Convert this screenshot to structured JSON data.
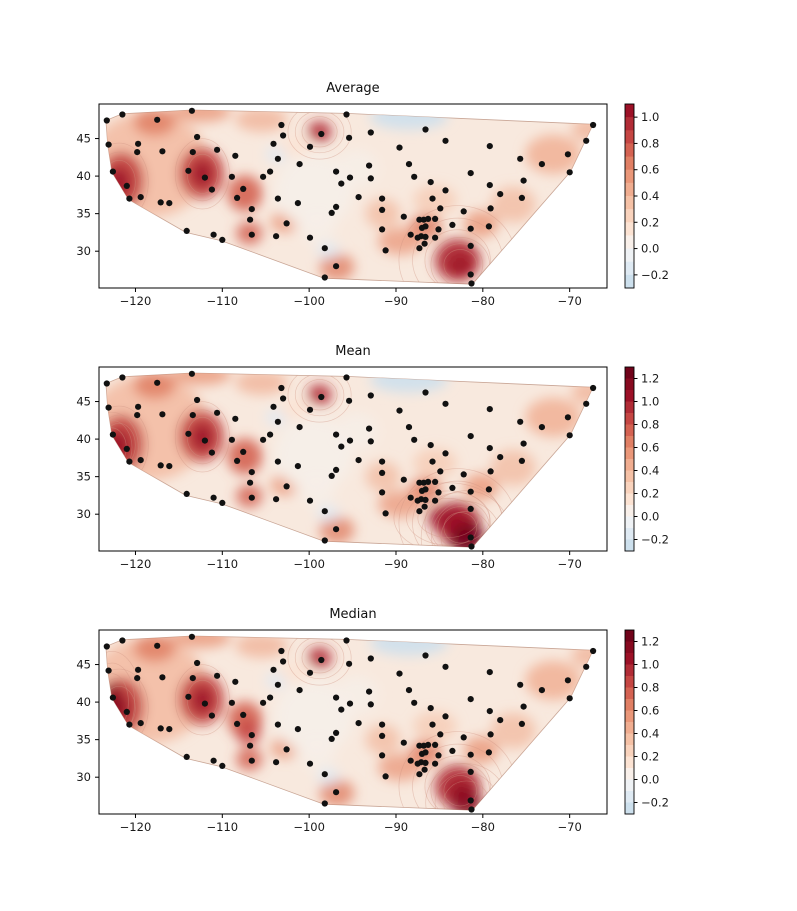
{
  "figure": {
    "background": "#ffffff",
    "colors": {
      "dot": "#111111",
      "frame": "#000000",
      "tick_text": "#1a1a1a",
      "hull_base": "#f8e9de",
      "hull_edge": "#c9a696",
      "ring_stroke": "#cf9384"
    }
  },
  "chart_data": {
    "type": "contour_scatter",
    "description": "Three filled tricontour maps of station values over the continental US with identical station scatter points",
    "xlabel": "",
    "ylabel": "",
    "xlim": [
      -124.2,
      -65.7
    ],
    "ylim": [
      25.1,
      49.6
    ],
    "x_ticks": {
      "values": [
        -120,
        -110,
        -100,
        -90,
        -80,
        -70
      ],
      "labels": [
        "−120",
        "−110",
        "−100",
        "−90",
        "−80",
        "−70"
      ]
    },
    "y_ticks": {
      "values": [
        30,
        35,
        40,
        45
      ],
      "labels": [
        "30",
        "35",
        "40",
        "45"
      ]
    },
    "grid": false,
    "subplots": [
      {
        "title": "Average",
        "colorbar": {
          "vmin": -0.3,
          "vmax": 1.1,
          "ticks": [
            1.0,
            0.8,
            0.6,
            0.4,
            0.2,
            0.0,
            -0.2
          ],
          "tick_labels": [
            "1.0",
            "0.8",
            "0.6",
            "0.4",
            "0.2",
            "0.0",
            "−0.2"
          ],
          "palette": [
            "#cde0ed",
            "#dfeaf3",
            "#eff2f5",
            "#f9f0ea",
            "#fce3d3",
            "#f9d3bd",
            "#f5c1a6",
            "#f0ad90",
            "#ea9779",
            "#e07f64",
            "#d46252",
            "#c54643",
            "#b12c36",
            "#9c1127"
          ]
        },
        "extra_blobs": []
      },
      {
        "title": "Mean",
        "colorbar": {
          "vmin": -0.3,
          "vmax": 1.3,
          "ticks": [
            1.2,
            1.0,
            0.8,
            0.6,
            0.4,
            0.2,
            0.0,
            -0.2
          ],
          "tick_labels": [
            "1.2",
            "1.0",
            "0.8",
            "0.6",
            "0.4",
            "0.2",
            "0.0",
            "−0.2"
          ],
          "palette": [
            "#cde0ed",
            "#dfeaf3",
            "#eff2f5",
            "#f9f0ea",
            "#fce3d3",
            "#f9d3bd",
            "#f5c1a6",
            "#f0ad90",
            "#ea9779",
            "#e07f64",
            "#d46252",
            "#c54643",
            "#b12c36",
            "#9c1127",
            "#870a20",
            "#70031a"
          ]
        },
        "extra_blobs": [
          [
            -81.9,
            26.9,
            2.0,
            2.4,
            "#70031a",
            0.9
          ],
          [
            -84.0,
            29.5,
            2.4,
            1.8,
            "#9c1127",
            0.8
          ],
          [
            -122.8,
            38.9,
            1.2,
            1.8,
            "#9c1127",
            0.85
          ]
        ]
      },
      {
        "title": "Median",
        "colorbar": {
          "vmin": -0.3,
          "vmax": 1.3,
          "ticks": [
            1.2,
            1.0,
            0.8,
            0.6,
            0.4,
            0.2,
            0.0,
            -0.2
          ],
          "tick_labels": [
            "1.2",
            "1.0",
            "0.8",
            "0.6",
            "0.4",
            "0.2",
            "0.0",
            "−0.2"
          ],
          "palette": [
            "#cde0ed",
            "#dfeaf3",
            "#eff2f5",
            "#f9f0ea",
            "#fce3d3",
            "#f9d3bd",
            "#f5c1a6",
            "#f0ad90",
            "#ea9779",
            "#e07f64",
            "#d46252",
            "#c54643",
            "#b12c36",
            "#9c1127",
            "#870a20",
            "#70031a"
          ]
        },
        "extra_blobs": [
          [
            -122.7,
            40.0,
            1.3,
            2.6,
            "#870a20",
            0.9
          ],
          [
            -81.9,
            26.6,
            1.8,
            2.0,
            "#870a20",
            0.85
          ],
          [
            -107.0,
            36.0,
            1.4,
            1.8,
            "#c54643",
            0.8
          ]
        ]
      }
    ],
    "hull": [
      [
        -123.4,
        47.4
      ],
      [
        -121.5,
        48.3
      ],
      [
        -113.5,
        48.8
      ],
      [
        -95.7,
        48.35
      ],
      [
        -67.3,
        46.9
      ],
      [
        -69.9,
        40.6
      ],
      [
        -81.2,
        25.6
      ],
      [
        -98.3,
        26.4
      ],
      [
        -110.1,
        31.4
      ],
      [
        -114.2,
        32.5
      ],
      [
        -120.8,
        36.9
      ],
      [
        -122.7,
        40.5
      ],
      [
        -123.2,
        44.2
      ]
    ],
    "base_blobs": [
      [
        -118.5,
        41.5,
        7.0,
        7.0,
        "#f3b89d",
        0.8
      ],
      [
        -121.6,
        39.4,
        2.6,
        3.8,
        "#c54643",
        0.95
      ],
      [
        -121.9,
        39.2,
        1.3,
        2.0,
        "#9c1127",
        0.9
      ],
      [
        -112.4,
        40.4,
        2.6,
        3.4,
        "#c54643",
        0.95
      ],
      [
        -112.3,
        40.3,
        1.2,
        1.8,
        "#9c1127",
        0.9
      ],
      [
        -107.4,
        37.7,
        2.0,
        2.4,
        "#d46252",
        0.9
      ],
      [
        -117.8,
        47.2,
        2.4,
        1.8,
        "#e07f64",
        0.85
      ],
      [
        -112.5,
        48.6,
        3.5,
        1.4,
        "#ea9779",
        0.8
      ],
      [
        -105.5,
        47.5,
        3.0,
        1.6,
        "#f0ad90",
        0.7
      ],
      [
        -98.8,
        45.9,
        1.4,
        1.4,
        "#b12c36",
        0.9
      ],
      [
        -106.9,
        32.4,
        1.5,
        1.5,
        "#d46252",
        0.85
      ],
      [
        -102.8,
        33.9,
        1.6,
        1.4,
        "#ea9779",
        0.8
      ],
      [
        -82.9,
        28.8,
        2.6,
        2.8,
        "#b12c36",
        0.95
      ],
      [
        -82.6,
        28.2,
        1.3,
        1.4,
        "#9c1127",
        0.9
      ],
      [
        -86.6,
        33.2,
        1.9,
        1.7,
        "#e07f64",
        0.85
      ],
      [
        -89.5,
        31.3,
        2.6,
        1.8,
        "#ea9779",
        0.75
      ],
      [
        -96.8,
        27.9,
        2.0,
        1.8,
        "#e07f64",
        0.8
      ],
      [
        -80.2,
        33.6,
        2.0,
        1.8,
        "#ea9779",
        0.8
      ],
      [
        -71.9,
        42.9,
        3.2,
        2.6,
        "#f0ad90",
        0.8
      ],
      [
        -76.5,
        36.2,
        2.6,
        2.4,
        "#f0ad90",
        0.6
      ],
      [
        -67.8,
        46.2,
        2.0,
        1.6,
        "#f0ad90",
        0.7
      ],
      [
        -91.5,
        35.0,
        2.0,
        2.0,
        "#f0ad90",
        0.6
      ],
      [
        -85.5,
        36.8,
        2.5,
        2.0,
        "#f5c1a6",
        0.6
      ],
      [
        -88.5,
        47.9,
        4.5,
        1.7,
        "#cde0ed",
        0.9
      ],
      [
        -103.7,
        42.9,
        1.3,
        1.1,
        "#dfeaf3",
        0.85
      ],
      [
        -97.8,
        30.1,
        1.3,
        1.1,
        "#dfeaf3",
        0.85
      ],
      [
        -99.5,
        38.0,
        4.5,
        5.0,
        "#f6efe9",
        0.9
      ],
      [
        -94.5,
        41.0,
        2.5,
        2.5,
        "#f6efe9",
        0.8
      ],
      [
        -99.0,
        33.0,
        2.0,
        2.0,
        "#f6efe9",
        0.8
      ],
      [
        -101.5,
        44.0,
        2.0,
        1.5,
        "#fce3d3",
        0.7
      ]
    ],
    "stations": [
      [
        -123.3,
        47.4
      ],
      [
        -121.5,
        48.2
      ],
      [
        -117.5,
        47.5
      ],
      [
        -113.5,
        48.7
      ],
      [
        -123.1,
        44.2
      ],
      [
        -119.7,
        44.3
      ],
      [
        -119.8,
        43.2
      ],
      [
        -116.9,
        43.3
      ],
      [
        -112.9,
        45.2
      ],
      [
        -113.4,
        43.2
      ],
      [
        -110.6,
        43.5
      ],
      [
        -108.5,
        42.7
      ],
      [
        -122.6,
        40.6
      ],
      [
        -121.0,
        38.7
      ],
      [
        -113.9,
        40.7
      ],
      [
        -112.0,
        39.8
      ],
      [
        -111.2,
        38.2
      ],
      [
        -108.9,
        39.9
      ],
      [
        -107.6,
        38.3
      ],
      [
        -105.3,
        39.9
      ],
      [
        -104.5,
        40.6
      ],
      [
        -103.6,
        42.3
      ],
      [
        -104.1,
        44.3
      ],
      [
        -103.2,
        46.8
      ],
      [
        -103.0,
        45.4
      ],
      [
        -101.1,
        41.6
      ],
      [
        -98.6,
        45.6
      ],
      [
        -99.9,
        43.9
      ],
      [
        -95.7,
        48.2
      ],
      [
        -95.4,
        45.1
      ],
      [
        -96.9,
        40.6
      ],
      [
        -95.3,
        39.8
      ],
      [
        -96.3,
        39.0
      ],
      [
        -96.9,
        35.9
      ],
      [
        -97.4,
        35.1
      ],
      [
        -120.7,
        37.0
      ],
      [
        -119.4,
        37.2
      ],
      [
        -117.1,
        36.5
      ],
      [
        -116.1,
        36.4
      ],
      [
        -114.1,
        32.7
      ],
      [
        -111.0,
        32.2
      ],
      [
        -110.0,
        31.5
      ],
      [
        -108.3,
        37.1
      ],
      [
        -106.6,
        35.6
      ],
      [
        -106.8,
        34.2
      ],
      [
        -106.6,
        32.2
      ],
      [
        -103.6,
        37.0
      ],
      [
        -102.6,
        33.7
      ],
      [
        -103.8,
        32.0
      ],
      [
        -101.3,
        36.4
      ],
      [
        -99.9,
        31.8
      ],
      [
        -98.2,
        30.4
      ],
      [
        -96.9,
        28.0
      ],
      [
        -98.2,
        26.5
      ],
      [
        -91.2,
        30.1
      ],
      [
        -92.9,
        45.8
      ],
      [
        -89.6,
        43.8
      ],
      [
        -86.6,
        46.2
      ],
      [
        -84.3,
        44.7
      ],
      [
        -93.1,
        41.4
      ],
      [
        -88.5,
        41.6
      ],
      [
        -92.9,
        39.7
      ],
      [
        -87.9,
        39.9
      ],
      [
        -86.0,
        39.2
      ],
      [
        -84.3,
        38.1
      ],
      [
        -85.8,
        37.0
      ],
      [
        -81.4,
        40.4
      ],
      [
        -94.3,
        37.2
      ],
      [
        -91.6,
        37.0
      ],
      [
        -91.6,
        35.5
      ],
      [
        -89.1,
        34.6
      ],
      [
        -91.6,
        32.9
      ],
      [
        -88.3,
        32.2
      ],
      [
        -84.9,
        35.7
      ],
      [
        -82.2,
        35.3
      ],
      [
        -83.5,
        33.5
      ],
      [
        -85.1,
        32.9
      ],
      [
        -81.4,
        33.0
      ],
      [
        -79.3,
        33.3
      ],
      [
        -79.1,
        35.7
      ],
      [
        -81.4,
        30.7
      ],
      [
        -81.4,
        26.9
      ],
      [
        -81.3,
        25.7
      ],
      [
        -87.3,
        34.2
      ],
      [
        -86.8,
        34.2
      ],
      [
        -86.3,
        34.3
      ],
      [
        -85.5,
        34.3
      ],
      [
        -87.0,
        33.1
      ],
      [
        -86.6,
        33.3
      ],
      [
        -87.1,
        32.0
      ],
      [
        -87.5,
        31.8
      ],
      [
        -86.6,
        31.9
      ],
      [
        -85.5,
        31.8
      ],
      [
        -86.7,
        31.0
      ],
      [
        -87.3,
        30.4
      ],
      [
        -79.2,
        44.0
      ],
      [
        -75.7,
        42.3
      ],
      [
        -73.2,
        41.6
      ],
      [
        -70.2,
        42.9
      ],
      [
        -70.0,
        40.5
      ],
      [
        -67.3,
        46.8
      ],
      [
        -68.1,
        44.7
      ],
      [
        -79.2,
        38.8
      ],
      [
        -78.0,
        37.6
      ],
      [
        -75.3,
        39.4
      ],
      [
        -75.5,
        37.1
      ]
    ]
  }
}
